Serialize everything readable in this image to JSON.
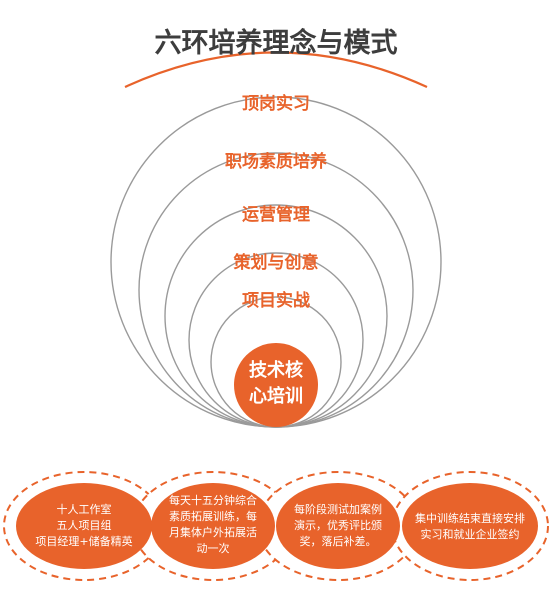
{
  "diagram": {
    "title": "六环培养理念与模式",
    "rings": [
      "顶岗实习",
      "职场素质培养",
      "运营管理",
      "策划与创意",
      "项目实战"
    ],
    "core": [
      "技术核",
      "心培训"
    ],
    "pills": [
      [
        "十人工作室",
        "五人项目组",
        "项目经理+储备精英"
      ],
      [
        "每天十五分钟综合",
        "素质拓展训练，每",
        "月集体户外拓展活",
        "动一次"
      ],
      [
        "每阶段测试加案例",
        "演示，优秀评比颁",
        "奖，落后补差。"
      ],
      [
        "集中训练结束直接安排",
        "实习和就业企业签约"
      ]
    ],
    "colors": {
      "accent": "#e8632b",
      "ring_stroke": "#9a9a9a",
      "title": "#3d3d3d",
      "pill_text": "#ffffff"
    }
  }
}
